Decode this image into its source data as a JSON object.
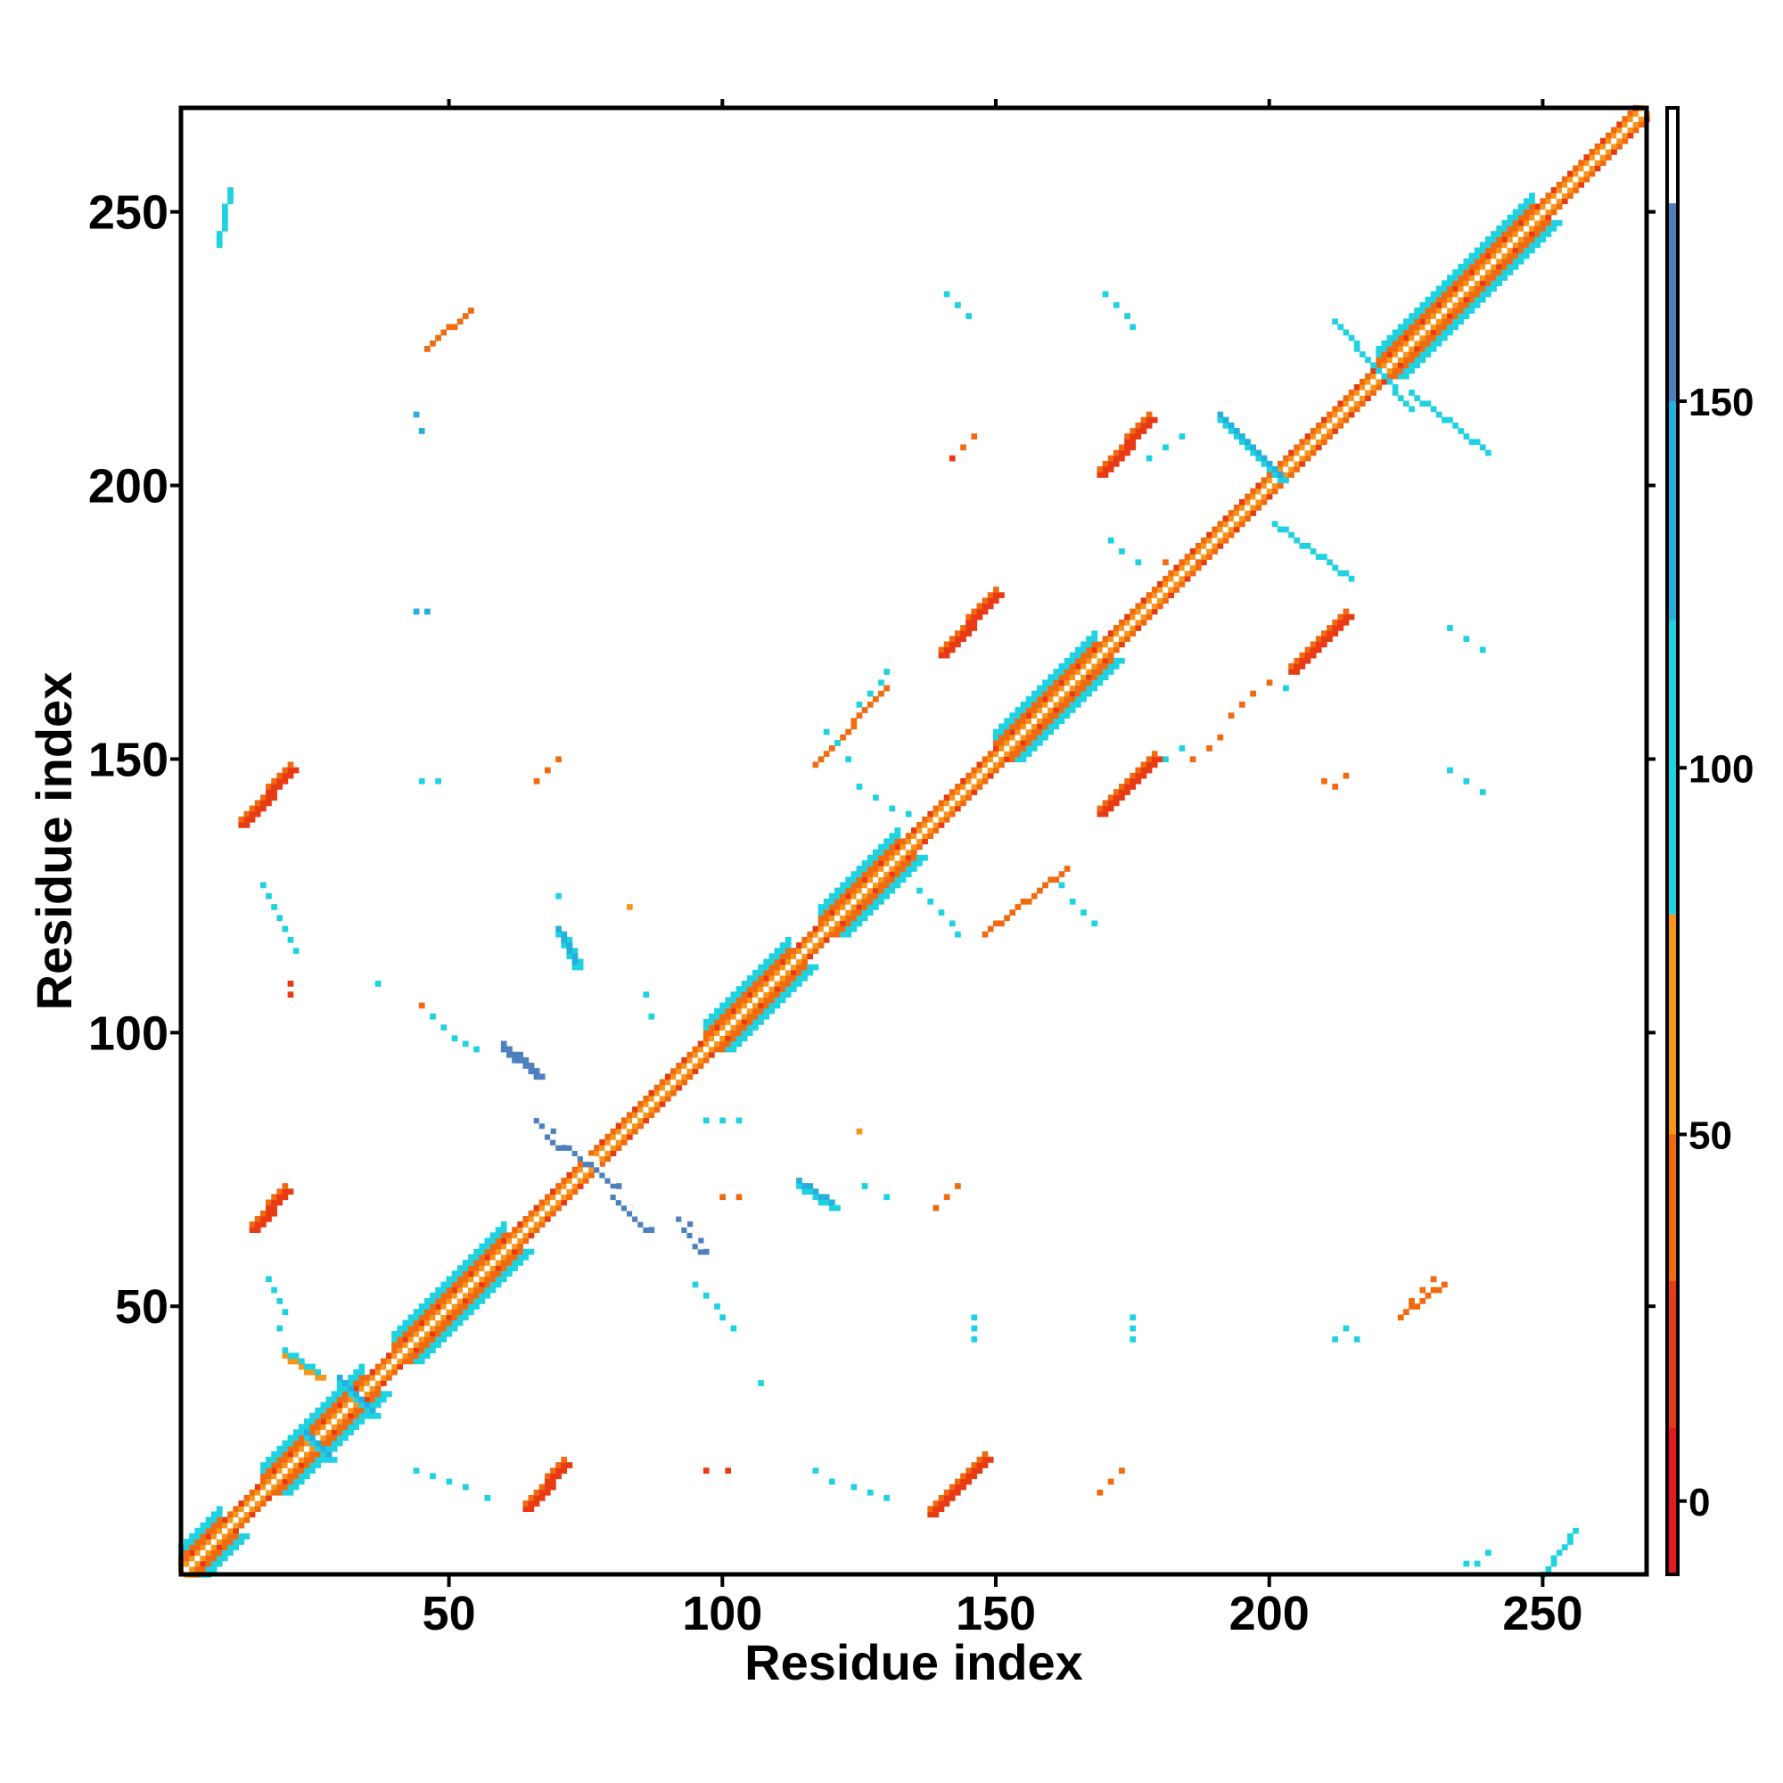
{
  "chart_data": {
    "type": "heatmap",
    "title": "",
    "xlabel": "Residue index",
    "ylabel": "Residue index",
    "xlim": [
      1,
      269
    ],
    "ylim": [
      1,
      269
    ],
    "x_ticks": [
      50,
      100,
      150,
      200,
      250
    ],
    "y_ticks": [
      50,
      100,
      150,
      200,
      250
    ],
    "x_tick_labels": [
      "50",
      "100",
      "150",
      "200",
      "250"
    ],
    "y_tick_labels": [
      "50",
      "100",
      "150",
      "200",
      "250"
    ],
    "colorbar": {
      "range": [
        -10,
        190
      ],
      "ticks": [
        0,
        50,
        100,
        150
      ],
      "tick_labels": [
        "0",
        "50",
        "100",
        "150"
      ],
      "bands": [
        {
          "from": -10,
          "to": 10,
          "color": "#e8191c"
        },
        {
          "from": 10,
          "to": 30,
          "color": "#e83a14"
        },
        {
          "from": 30,
          "to": 50,
          "color": "#f26a10"
        },
        {
          "from": 50,
          "to": 80,
          "color": "#f7961b"
        },
        {
          "from": 80,
          "to": 120,
          "color": "#1fd2e2"
        },
        {
          "from": 120,
          "to": 150,
          "color": "#25b0dc"
        },
        {
          "from": 150,
          "to": 177,
          "color": "#4d80bc"
        },
        {
          "from": 177,
          "to": 190,
          "color": "#ffffff"
        }
      ]
    },
    "diagonal": {
      "from": 1,
      "to": 269,
      "value": 60
    },
    "diagonal_bands": [
      {
        "from": 1,
        "to": 8,
        "value": 100
      },
      {
        "from": 16,
        "to": 34,
        "value": 100
      },
      {
        "from": 40,
        "to": 60,
        "value": 110
      },
      {
        "from": 97,
        "to": 112,
        "value": 110
      },
      {
        "from": 118,
        "to": 132,
        "value": 110
      },
      {
        "from": 150,
        "to": 168,
        "value": 110
      },
      {
        "from": 220,
        "to": 248,
        "value": 110
      }
    ],
    "segments": [
      {
        "x": [
          12,
          21
        ],
        "y": [
          138,
          148
        ],
        "value": 15,
        "w": 2
      },
      {
        "x": [
          14,
          20
        ],
        "y": [
          64,
          71
        ],
        "value": 15,
        "w": 2
      },
      {
        "x": [
          64,
          71
        ],
        "y": [
          13,
          21
        ],
        "value": 15,
        "w": 2
      },
      {
        "x": [
          138,
          148
        ],
        "y": [
          12,
          22
        ],
        "value": 15,
        "w": 2
      },
      {
        "x": [
          140,
          150
        ],
        "y": [
          169,
          180
        ],
        "value": 15,
        "w": 2
      },
      {
        "x": [
          169,
          179
        ],
        "y": [
          140,
          150
        ],
        "value": 15,
        "w": 2
      },
      {
        "x": [
          169,
          178
        ],
        "y": [
          202,
          212
        ],
        "value": 15,
        "w": 2
      },
      {
        "x": [
          204,
          214
        ],
        "y": [
          166,
          176
        ],
        "value": 15,
        "w": 2
      },
      {
        "x": [
          66,
          70
        ],
        "y": [
          84,
          79
        ],
        "value": 160,
        "w": 2
      },
      {
        "x": [
          72,
          80
        ],
        "y": [
          79,
          72
        ],
        "value": 160,
        "w": 2
      },
      {
        "x": [
          80,
          86
        ],
        "y": [
          70,
          64
        ],
        "value": 160,
        "w": 2
      },
      {
        "x": [
          92,
          96
        ],
        "y": [
          66,
          60
        ],
        "value": 160,
        "w": 2
      },
      {
        "x": [
          60,
          66
        ],
        "y": [
          97,
          92
        ],
        "value": 150,
        "w": 2
      },
      {
        "x": [
          70,
          73
        ],
        "y": [
          118,
          112
        ],
        "value": 110,
        "w": 2
      },
      {
        "x": [
          114,
          120
        ],
        "y": [
          72,
          68
        ],
        "value": 110,
        "w": 2
      },
      {
        "x": [
          191,
          202
        ],
        "y": [
          212,
          201
        ],
        "value": 110,
        "w": 2
      },
      {
        "x": [
          201,
          215
        ],
        "y": [
          193,
          183
        ],
        "value": 110,
        "w": 1
      },
      {
        "x": [
          212,
          226
        ],
        "y": [
          230,
          214
        ],
        "value": 110,
        "w": 1
      },
      {
        "x": [
          226,
          240
        ],
        "y": [
          217,
          206
        ],
        "value": 110,
        "w": 1
      },
      {
        "x": [
          20,
          26
        ],
        "y": [
          41,
          37
        ],
        "value": 60,
        "w": 2
      },
      {
        "x": [
          30,
          36
        ],
        "y": [
          36,
          30
        ],
        "value": 100,
        "w": 2
      },
      {
        "x": [
          24,
          28
        ],
        "y": [
          26,
          22
        ],
        "value": 100,
        "w": 2
      },
      {
        "x": [
          46,
          54
        ],
        "y": [
          225,
          232
        ],
        "value": 40,
        "w": 1
      },
      {
        "x": [
          224,
          232
        ],
        "y": [
          48,
          54
        ],
        "value": 40,
        "w": 1
      },
      {
        "x": [
          117,
          130
        ],
        "y": [
          149,
          163
        ],
        "value": 40,
        "w": 1
      },
      {
        "x": [
          148,
          163
        ],
        "y": [
          118,
          130
        ],
        "value": 40,
        "w": 1
      },
      {
        "x": [
          8,
          10
        ],
        "y": [
          244,
          254
        ],
        "value": 110,
        "w": 1
      },
      {
        "x": [
          250,
          256
        ],
        "y": [
          1,
          9
        ],
        "value": 110,
        "w": 1
      }
    ],
    "points": [
      [
        16,
        127,
        110
      ],
      [
        17,
        125,
        110
      ],
      [
        18,
        123,
        110
      ],
      [
        19,
        121,
        110
      ],
      [
        20,
        119,
        110
      ],
      [
        21,
        117,
        110
      ],
      [
        22,
        115,
        110
      ],
      [
        21,
        109,
        15
      ],
      [
        21,
        107,
        15
      ],
      [
        17,
        55,
        110
      ],
      [
        18,
        53,
        110
      ],
      [
        19,
        51,
        110
      ],
      [
        20,
        49,
        110
      ],
      [
        19,
        46,
        110
      ],
      [
        44,
        177,
        130
      ],
      [
        46,
        177,
        130
      ],
      [
        45,
        146,
        110
      ],
      [
        48,
        146,
        110
      ],
      [
        44,
        213,
        130
      ],
      [
        45,
        210,
        130
      ],
      [
        37,
        109,
        110
      ],
      [
        45,
        105,
        40
      ],
      [
        47,
        103,
        110
      ],
      [
        49,
        101,
        110
      ],
      [
        51,
        99,
        110
      ],
      [
        53,
        98,
        110
      ],
      [
        55,
        97,
        110
      ],
      [
        44,
        20,
        110
      ],
      [
        47,
        19,
        110
      ],
      [
        50,
        18,
        110
      ],
      [
        53,
        17,
        110
      ],
      [
        57,
        15,
        110
      ],
      [
        66,
        146,
        40
      ],
      [
        68,
        148,
        40
      ],
      [
        70,
        150,
        40
      ],
      [
        70,
        125,
        110
      ],
      [
        83,
        123,
        60
      ],
      [
        86,
        107,
        110
      ],
      [
        87,
        103,
        110
      ],
      [
        95,
        54,
        110
      ],
      [
        97,
        52,
        110
      ],
      [
        99,
        50,
        110
      ],
      [
        100,
        48,
        110
      ],
      [
        102,
        46,
        110
      ],
      [
        97,
        84,
        110
      ],
      [
        100,
        84,
        110
      ],
      [
        103,
        84,
        110
      ],
      [
        107,
        36,
        110
      ],
      [
        100,
        70,
        40
      ],
      [
        103,
        70,
        40
      ],
      [
        97,
        20,
        15
      ],
      [
        101,
        20,
        15
      ],
      [
        117,
        20,
        110
      ],
      [
        120,
        18,
        110
      ],
      [
        124,
        17,
        110
      ],
      [
        127,
        16,
        110
      ],
      [
        130,
        15,
        110
      ],
      [
        125,
        82,
        60
      ],
      [
        126,
        72,
        110
      ],
      [
        130,
        70,
        110
      ],
      [
        139,
        68,
        40
      ],
      [
        141,
        70,
        40
      ],
      [
        143,
        72,
        40
      ],
      [
        146,
        44,
        110
      ],
      [
        146,
        46,
        110
      ],
      [
        146,
        48,
        110
      ],
      [
        169,
        16,
        40
      ],
      [
        171,
        18,
        40
      ],
      [
        173,
        20,
        40
      ],
      [
        175,
        44,
        110
      ],
      [
        175,
        46,
        110
      ],
      [
        175,
        48,
        110
      ],
      [
        141,
        235,
        110
      ],
      [
        143,
        233,
        110
      ],
      [
        145,
        231,
        110
      ],
      [
        144,
        207,
        40
      ],
      [
        146,
        209,
        40
      ],
      [
        142,
        205,
        15
      ],
      [
        170,
        235,
        110
      ],
      [
        172,
        233,
        110
      ],
      [
        174,
        231,
        110
      ],
      [
        175,
        229,
        110
      ],
      [
        171,
        190,
        110
      ],
      [
        173,
        188,
        110
      ],
      [
        176,
        186,
        110
      ],
      [
        181,
        186,
        40
      ],
      [
        184,
        186,
        40
      ],
      [
        187,
        186,
        40
      ],
      [
        178,
        205,
        110
      ],
      [
        181,
        207,
        110
      ],
      [
        184,
        209,
        110
      ],
      [
        181,
        150,
        110
      ],
      [
        184,
        152,
        110
      ],
      [
        125,
        160,
        110
      ],
      [
        127,
        162,
        110
      ],
      [
        129,
        164,
        110
      ],
      [
        130,
        166,
        110
      ],
      [
        119,
        155,
        110
      ],
      [
        121,
        153,
        110
      ],
      [
        123,
        150,
        110
      ],
      [
        125,
        145,
        110
      ],
      [
        128,
        143,
        110
      ],
      [
        131,
        141,
        110
      ],
      [
        134,
        140,
        110
      ],
      [
        136,
        126,
        110
      ],
      [
        138,
        124,
        110
      ],
      [
        140,
        122,
        110
      ],
      [
        142,
        120,
        110
      ],
      [
        143,
        118,
        110
      ],
      [
        162,
        127,
        110
      ],
      [
        164,
        124,
        110
      ],
      [
        166,
        122,
        110
      ],
      [
        168,
        120,
        110
      ],
      [
        186,
        150,
        40
      ],
      [
        189,
        152,
        40
      ],
      [
        191,
        154,
        40
      ],
      [
        193,
        158,
        40
      ],
      [
        195,
        160,
        40
      ],
      [
        197,
        162,
        40
      ],
      [
        200,
        164,
        40
      ],
      [
        203,
        163,
        110
      ],
      [
        210,
        146,
        40
      ],
      [
        212,
        145,
        40
      ],
      [
        214,
        147,
        40
      ],
      [
        233,
        148,
        110
      ],
      [
        236,
        146,
        110
      ],
      [
        239,
        144,
        110
      ],
      [
        233,
        174,
        110
      ],
      [
        236,
        172,
        110
      ],
      [
        239,
        170,
        110
      ],
      [
        212,
        44,
        110
      ],
      [
        214,
        46,
        110
      ],
      [
        216,
        44,
        110
      ],
      [
        226,
        51,
        40
      ],
      [
        228,
        53,
        40
      ],
      [
        230,
        55,
        40
      ],
      [
        236,
        3,
        110
      ],
      [
        238,
        3,
        110
      ],
      [
        240,
        5,
        110
      ]
    ]
  }
}
